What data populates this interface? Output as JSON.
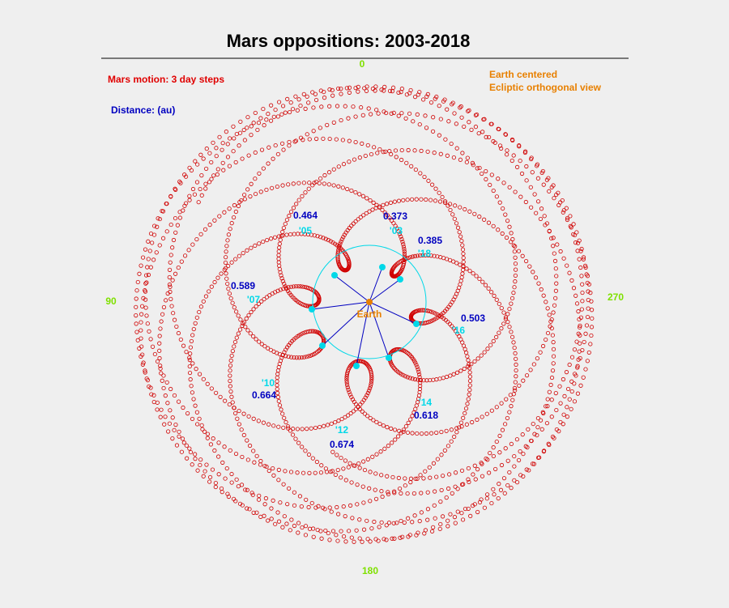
{
  "title": "Mars oppositions:  2003-2018",
  "legend": {
    "motion": "Mars motion: 3 day steps",
    "distance": "Distance: (au)",
    "view": [
      "Earth centered",
      "Ecliptic orthogonal view"
    ]
  },
  "center": "Earth",
  "directions": [
    "0",
    "90",
    "180",
    "270"
  ],
  "oppositions": [
    {
      "year": "'03",
      "distance": 0.373
    },
    {
      "year": "'05",
      "distance": 0.464
    },
    {
      "year": "'07",
      "distance": 0.589
    },
    {
      "year": "'10",
      "distance": 0.664
    },
    {
      "year": "'12",
      "distance": 0.674
    },
    {
      "year": "'14",
      "distance": 0.618
    },
    {
      "year": "'16",
      "distance": 0.503
    },
    {
      "year": "'18",
      "distance": 0.385
    }
  ]
}
